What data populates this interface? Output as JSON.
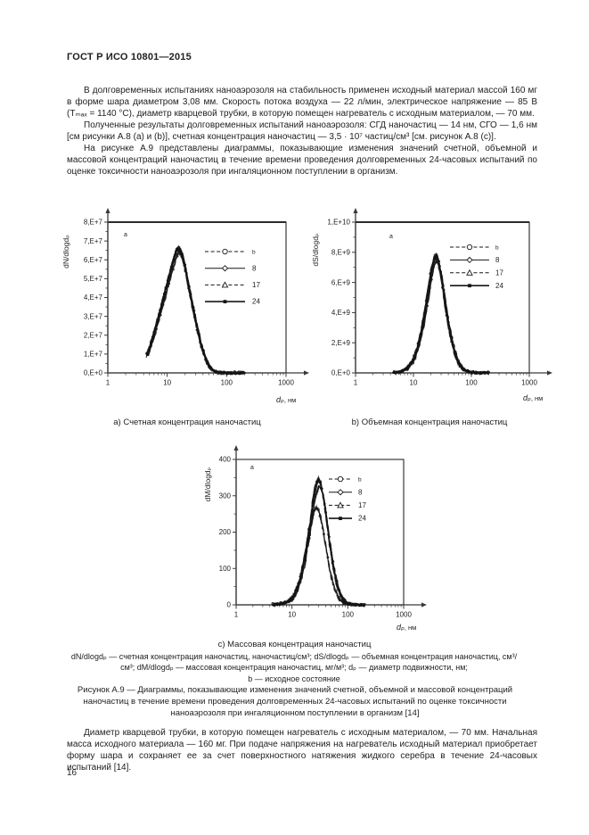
{
  "page": {
    "header": "ГОСТ Р ИСО 10801—2015",
    "page_number": "16",
    "paragraphs": {
      "p1": "В долговременных испытаниях наноаэрозоля на стабильность применен исходный материал массой 160 мг в форме шара диаметром 3,08 мм. Скорость потока воздуха — 22 л/мин, электрическое напряжение — 85 В (Tₘₐₓ = 1140 °С), диаметр кварцевой трубки, в которую помещен нагреватель с исходным материалом, — 70 мм.",
      "p2": "Полученные результаты долговременных испытаний наноаэрозоля: СГД наночастиц — 14 нм, СГО — 1,6 нм [см рисунки А.8 (а) и (b)], счетная концентрация наночастиц — 3,5 · 10⁷ частиц/см³ [см. рисунок А.8 (с)].",
      "p3": "На рисунке А.9 представлены диаграммы, показывающие изменения значений счетной, объемной и массовой концентраций наночастиц в течение времени проведения долговременных 24-часовых испытаний по оценке токсичности наноаэрозоля при ингаляционном поступлении в организм."
    },
    "captions": {
      "a": "a) Счетная концентрация наночастиц",
      "b": "b) Объемная концентрация наночастиц",
      "c": "c) Массовая концентрация наночастиц"
    },
    "notes": {
      "line1": "dN/dlogdₚ — счетная концентрация наночастиц, наночастиц/см³; dS/dlogdₚ — объемная концентрация наночастиц, см³/см³; dM/dlogdₚ — массовая концентрация наночастиц, мг/м³; dₚ — диаметр подвижности, нм;",
      "line2": "b — исходное состояние"
    },
    "figure_caption": "Рисунок А.9 — Диаграммы, показывающие изменения значений счетной, объемной и массовой концентраций наночастиц в течение времени проведения долговременных 24-часовых испытаний по оценке токсичности наноаэрозоля при ингаляционном поступлении в организм [14]",
    "closing_paragraph": "Диаметр кварцевой трубки, в которую помещен нагреватель с исходным материалом, — 70 мм. Начальная масса исходного материала — 160 мг. При подаче напряжения на нагреватель исходный материал приобретает форму шара и сохраняет ее за счет поверхностного натяжения жидкого серебра в течение 24-часовых испытаний [14]."
  },
  "colors": {
    "text": "#1e1e1e",
    "chart_ink": "#161616",
    "axis": "#3a3a3a"
  },
  "chart_data": [
    {
      "id": "a",
      "type": "line",
      "title": "a) Счетная концентрация наночастиц",
      "inplot_label": "a",
      "ylabel": "dN/dlogdₚ",
      "xlabel": "dₚ, нм",
      "xlabel_var": "dₚ",
      "xlabel_unit": ", нм",
      "x_scale": "log",
      "xlim": [
        1,
        1000
      ],
      "ylim": [
        0,
        80000000
      ],
      "grid": false,
      "legend_position": "inside-right",
      "xtick_labels": [
        "1",
        "10",
        "100",
        "1000"
      ],
      "ytick_values": [
        0,
        10000000,
        20000000,
        30000000,
        40000000,
        50000000,
        60000000,
        70000000,
        80000000
      ],
      "ytick_labels": [
        "0,E+0",
        "1,E+7",
        "2,E+7",
        "3,E+7",
        "4,E+7",
        "5,E+7",
        "6,E+7",
        "7,E+7",
        "8,E+7"
      ],
      "series": [
        {
          "name": "b",
          "line": "dashed",
          "marker": "circle-open",
          "scale": 0.985,
          "shift_log": -0.008
        },
        {
          "name": "8",
          "line": "solid",
          "marker": "diamond-open",
          "scale": 1.0,
          "shift_log": 0
        },
        {
          "name": "17",
          "line": "dashed",
          "marker": "triangle-open",
          "scale": 0.955,
          "shift_log": 0.012
        },
        {
          "name": "24",
          "line": "solid",
          "marker": "square-filled",
          "scale": 0.99,
          "shift_log": 0.004
        }
      ],
      "profile": [
        [
          4.5,
          9000000
        ],
        [
          5,
          13000000
        ],
        [
          6,
          21000000
        ],
        [
          7,
          29000000
        ],
        [
          8,
          36000000
        ],
        [
          9,
          42000000
        ],
        [
          10,
          48000000
        ],
        [
          11,
          53000000
        ],
        [
          12,
          57000000
        ],
        [
          13.5,
          63000000
        ],
        [
          15,
          67000000
        ],
        [
          16.5,
          66000000
        ],
        [
          18,
          63000000
        ],
        [
          20,
          57000000
        ],
        [
          22,
          50000000
        ],
        [
          25,
          41000000
        ],
        [
          28,
          33000000
        ],
        [
          32,
          24000000
        ],
        [
          36,
          17000000
        ],
        [
          40,
          11500000
        ],
        [
          45,
          7000000
        ],
        [
          50,
          4000000
        ],
        [
          55,
          2200000
        ],
        [
          60,
          1200000
        ],
        [
          70,
          400000
        ],
        [
          80,
          150000
        ],
        [
          100,
          40000
        ],
        [
          150,
          10000
        ],
        [
          200,
          0
        ]
      ]
    },
    {
      "id": "b",
      "type": "line",
      "title": "b) Объемная концентрация наночастиц",
      "inplot_label": "a",
      "ylabel": "dS/dlogdₚ",
      "xlabel": "dₚ, нм",
      "xlabel_var": "dₚ",
      "xlabel_unit": ", нм",
      "x_scale": "log",
      "xlim": [
        1,
        1000
      ],
      "ylim": [
        0,
        10000000000
      ],
      "grid": false,
      "legend_position": "inside-right",
      "xtick_labels": [
        "1",
        "10",
        "100",
        "1000"
      ],
      "ytick_values": [
        0,
        2000000000,
        4000000000,
        6000000000,
        8000000000,
        10000000000
      ],
      "ytick_labels": [
        "0,E+0",
        "2,E+9",
        "4,E+9",
        "6,E+9",
        "8,E+9",
        "1,E+10"
      ],
      "series": [
        {
          "name": "b",
          "line": "dashed",
          "marker": "circle-open",
          "scale": 0.985,
          "shift_log": -0.01
        },
        {
          "name": "8",
          "line": "solid",
          "marker": "diamond-open",
          "scale": 1.0,
          "shift_log": 0
        },
        {
          "name": "17",
          "line": "dashed",
          "marker": "triangle-open",
          "scale": 0.95,
          "shift_log": 0.015
        },
        {
          "name": "24",
          "line": "solid",
          "marker": "square-filled",
          "scale": 0.975,
          "shift_log": 0.005
        }
      ],
      "profile": [
        [
          4.5,
          20000000
        ],
        [
          6,
          80000000
        ],
        [
          8,
          350000000
        ],
        [
          10,
          900000000
        ],
        [
          12,
          1800000000
        ],
        [
          14,
          2900000000
        ],
        [
          16,
          4200000000
        ],
        [
          18,
          5500000000
        ],
        [
          20,
          6700000000
        ],
        [
          22,
          7500000000
        ],
        [
          24,
          7900000000
        ],
        [
          26,
          7800000000
        ],
        [
          28,
          7300000000
        ],
        [
          31,
          6300000000
        ],
        [
          34,
          5200000000
        ],
        [
          38,
          3900000000
        ],
        [
          42,
          2900000000
        ],
        [
          47,
          2000000000
        ],
        [
          52,
          1350000000
        ],
        [
          58,
          800000000
        ],
        [
          65,
          450000000
        ],
        [
          75,
          200000000
        ],
        [
          85,
          100000000
        ],
        [
          100,
          40000000
        ],
        [
          120,
          15000000
        ],
        [
          150,
          5000000
        ],
        [
          200,
          0
        ]
      ]
    },
    {
      "id": "c",
      "type": "line",
      "title": "c) Массовая концентрация наночастиц",
      "inplot_label": "a",
      "ylabel": "dM/dlogdₚ",
      "xlabel": "dₚ, нм",
      "xlabel_var": "dₚ",
      "xlabel_unit": ", нм",
      "x_scale": "log",
      "xlim": [
        1,
        1000
      ],
      "ylim": [
        0,
        400
      ],
      "grid": false,
      "legend_position": "inside-right",
      "xtick_labels": [
        "1",
        "10",
        "100",
        "1000"
      ],
      "ytick_values": [
        0,
        100,
        200,
        300,
        400
      ],
      "ytick_labels": [
        "0",
        "100",
        "200",
        "300",
        "400"
      ],
      "series": [
        {
          "name": "b",
          "line": "dashed",
          "marker": "circle-open",
          "scale": 0.77,
          "shift_log": -0.035
        },
        {
          "name": "8",
          "line": "solid",
          "marker": "diamond-open",
          "scale": 1.0,
          "shift_log": 0
        },
        {
          "name": "17",
          "line": "dashed",
          "marker": "triangle-open",
          "scale": 0.94,
          "shift_log": 0.02
        },
        {
          "name": "24",
          "line": "solid",
          "marker": "square-filled",
          "scale": 0.98,
          "shift_log": 0.006
        }
      ],
      "profile": [
        [
          4.5,
          0.5
        ],
        [
          6,
          2
        ],
        [
          8,
          7
        ],
        [
          10,
          18
        ],
        [
          12,
          40
        ],
        [
          14,
          75
        ],
        [
          16,
          115
        ],
        [
          18,
          160
        ],
        [
          20,
          205
        ],
        [
          22,
          250
        ],
        [
          24,
          295
        ],
        [
          26,
          325
        ],
        [
          28,
          345
        ],
        [
          30,
          350
        ],
        [
          32,
          342
        ],
        [
          35,
          315
        ],
        [
          38,
          280
        ],
        [
          42,
          230
        ],
        [
          46,
          180
        ],
        [
          50,
          140
        ],
        [
          55,
          100
        ],
        [
          60,
          70
        ],
        [
          70,
          34
        ],
        [
          80,
          16
        ],
        [
          90,
          8
        ],
        [
          100,
          4
        ],
        [
          120,
          1.5
        ],
        [
          150,
          0.5
        ],
        [
          200,
          0
        ]
      ]
    }
  ]
}
